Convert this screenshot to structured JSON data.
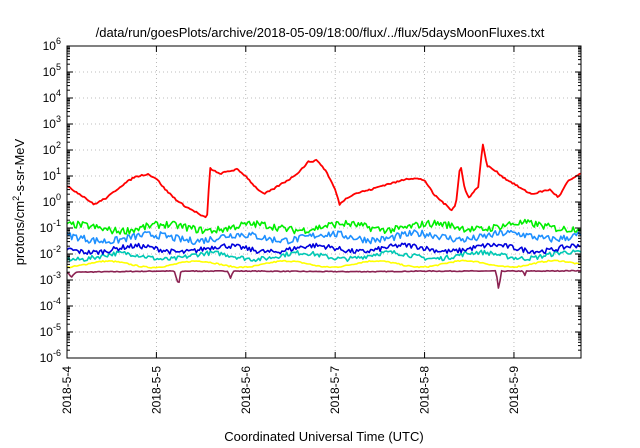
{
  "chart_data": {
    "type": "line",
    "title": "/data/run/goesPlots/archive/2018-05-09/18:00/flux/../flux/5daysMoonFluxes.txt",
    "xlabel": "Coordinated Universal Time (UTC)",
    "ylabel": {
      "base": "protons/cm",
      "sup": "2",
      "rest": "-s-sr-MeV"
    },
    "y_scale": "log",
    "ylim_exponent": [
      -6,
      6
    ],
    "y_ticks": [
      {
        "base": "10",
        "exp": "-6",
        "value": 1e-06
      },
      {
        "base": "10",
        "exp": "-5",
        "value": 1e-05
      },
      {
        "base": "10",
        "exp": "-4",
        "value": 0.0001
      },
      {
        "base": "10",
        "exp": "-3",
        "value": 0.001
      },
      {
        "base": "10",
        "exp": "-2",
        "value": 0.01
      },
      {
        "base": "10",
        "exp": "-1",
        "value": 0.1
      },
      {
        "base": "10",
        "exp": "0",
        "value": 1
      },
      {
        "base": "10",
        "exp": "1",
        "value": 10
      },
      {
        "base": "10",
        "exp": "2",
        "value": 100
      },
      {
        "base": "10",
        "exp": "3",
        "value": 1000
      },
      {
        "base": "10",
        "exp": "4",
        "value": 10000
      },
      {
        "base": "10",
        "exp": "5",
        "value": 100000
      },
      {
        "base": "10",
        "exp": "6",
        "value": 1000000
      }
    ],
    "x_ticks": [
      "2018-5-4",
      "2018-5-5",
      "2018-5-6",
      "2018-5-7",
      "2018-5-8",
      "2018-5-9"
    ],
    "xlim_days": [
      0,
      5.75
    ],
    "grid": "dotted",
    "legend": "none",
    "series": [
      {
        "color": "#ff0000",
        "x": [
          0,
          0.1,
          0.2,
          0.3,
          0.45,
          0.6,
          0.75,
          0.9,
          1.0,
          1.1,
          1.25,
          1.35,
          1.45,
          1.5,
          1.55,
          1.57,
          1.6,
          1.7,
          1.8,
          1.9,
          2.0,
          2.1,
          2.2,
          2.3,
          2.4,
          2.5,
          2.6,
          2.7,
          2.8,
          2.9,
          3.0,
          3.05,
          3.1,
          3.2,
          3.3,
          3.4,
          3.5,
          3.6,
          3.7,
          3.8,
          3.9,
          4.0,
          4.1,
          4.2,
          4.3,
          4.35,
          4.4,
          4.45,
          4.5,
          4.6,
          4.65,
          4.7,
          4.8,
          4.9,
          5.0,
          5.1,
          5.2,
          5.3,
          5.4,
          5.5,
          5.6,
          5.7,
          5.75
        ],
        "y": [
          4,
          2.5,
          1.5,
          0.8,
          1.5,
          4,
          9,
          12,
          8,
          3,
          1,
          0.6,
          0.4,
          0.3,
          0.25,
          0.35,
          20,
          12,
          15,
          18,
          10,
          4,
          2,
          3,
          5,
          8,
          15,
          35,
          40,
          15,
          3,
          0.8,
          1.2,
          2,
          2.5,
          3,
          4,
          5,
          6,
          8,
          8,
          7,
          2,
          1,
          0.5,
          0.8,
          30,
          3,
          1.5,
          4,
          170,
          25,
          15,
          8,
          5,
          3,
          2,
          2.5,
          3,
          1.5,
          6,
          10,
          12
        ]
      },
      {
        "color": "#00ee00",
        "x": [
          0,
          5.75
        ],
        "y": [
          0.1,
          0.12
        ]
      },
      {
        "color": "#1e90ff",
        "x": [
          0,
          5.75
        ],
        "y": [
          0.04,
          0.05
        ]
      },
      {
        "color": "#0000dd",
        "x": [
          0,
          5.75
        ],
        "y": [
          0.015,
          0.017
        ]
      },
      {
        "color": "#00c8b4",
        "x": [
          0,
          5.75
        ],
        "y": [
          0.008,
          0.009
        ]
      },
      {
        "color": "#ffff00",
        "x": [
          0,
          5.75
        ],
        "y": [
          0.004,
          0.0042
        ]
      },
      {
        "color": "#8b2252",
        "x": [
          0,
          0.05,
          0.1,
          1.0,
          1.2,
          1.25,
          1.27,
          1.3,
          1.5,
          1.8,
          1.83,
          1.86,
          2.0,
          3.0,
          3.5,
          4.0,
          4.8,
          4.83,
          4.86,
          5.0,
          5.1,
          5.12,
          5.14,
          5.3,
          5.75
        ],
        "y": [
          0.002,
          0.0013,
          0.002,
          0.0022,
          0.0022,
          0.0006,
          0.002,
          0.0022,
          0.0022,
          0.0022,
          0.0012,
          0.0022,
          0.0022,
          0.0021,
          0.0021,
          0.0022,
          0.0022,
          0.0004,
          0.0022,
          0.0022,
          0.0022,
          0.0014,
          0.0022,
          0.0022,
          0.0023
        ]
      }
    ]
  }
}
